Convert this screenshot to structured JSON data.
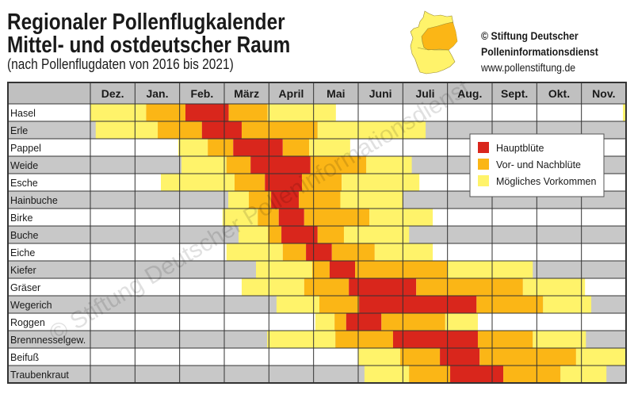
{
  "header": {
    "title_line1": "Regionaler Pollenflugkalender",
    "title_line2": "Mittel- und ostdeutscher Raum",
    "subtitle": "(nach Pollenflugdaten von 2016 bis 2021)",
    "publisher_line1": "© Stiftung Deutscher",
    "publisher_line2": "Polleninformationsdienst",
    "publisher_url": "www.pollenstiftung.de",
    "map_icon": "germany-map-icon",
    "watermark": "© Stiftung Deutscher Polleninformationsdienst"
  },
  "colors": {
    "Hauptblüte": "#d9261c",
    "Vor- und Nachblüte": "#fbb616",
    "Mögliches Vorkommen": "#fff36a",
    "row_alt": "#c8c8c8",
    "header_bg": "#c0c0c0",
    "map_region": "#fbb616",
    "map_other": "#fff36a"
  },
  "chart_data": {
    "type": "table",
    "title": "Regionaler Pollenflugkalender Mittel- und ostdeutscher Raum",
    "subtitle": "(nach Pollenflugdaten von 2016 bis 2021)",
    "months": [
      "Dez.",
      "Jan.",
      "Feb.",
      "März",
      "April",
      "Mai",
      "Juni",
      "Juli",
      "Aug.",
      "Sept.",
      "Okt.",
      "Nov."
    ],
    "legend": {
      "placement": "right",
      "entries": [
        {
          "level": 3,
          "label": "Hauptblüte"
        },
        {
          "level": 2,
          "label": "Vor- und Nachblüte"
        },
        {
          "level": 1,
          "label": "Mögliches Vorkommen"
        }
      ]
    },
    "position_unit": "months from start of Dez. (Dez.=0 … Nov. end=12)",
    "plants": [
      {
        "name": "Hasel",
        "periods": [
          [
            0,
            1.25,
            1
          ],
          [
            1.25,
            2.13,
            2
          ],
          [
            2.13,
            3.1,
            3
          ],
          [
            3.1,
            3.97,
            2
          ],
          [
            3.97,
            5.5,
            1
          ],
          [
            11.93,
            12,
            1
          ]
        ]
      },
      {
        "name": "Erle",
        "periods": [
          [
            0.12,
            1.51,
            1
          ],
          [
            1.51,
            2.5,
            2
          ],
          [
            2.5,
            3.39,
            3
          ],
          [
            3.39,
            5.09,
            2
          ],
          [
            5.09,
            7.51,
            1
          ]
        ]
      },
      {
        "name": "Pappel",
        "periods": [
          [
            1.97,
            2.63,
            1
          ],
          [
            2.63,
            3.2,
            2
          ],
          [
            3.2,
            4.31,
            3
          ],
          [
            4.31,
            4.9,
            2
          ],
          [
            4.9,
            5.82,
            1
          ]
        ]
      },
      {
        "name": "Weide",
        "periods": [
          [
            2.04,
            3.05,
            1
          ],
          [
            3.05,
            3.59,
            2
          ],
          [
            3.59,
            4.93,
            3
          ],
          [
            4.93,
            6.18,
            2
          ],
          [
            6.18,
            7.2,
            1
          ]
        ]
      },
      {
        "name": "Esche",
        "periods": [
          [
            1.58,
            3.23,
            1
          ],
          [
            3.23,
            3.91,
            2
          ],
          [
            3.91,
            4.74,
            3
          ],
          [
            4.74,
            5.63,
            2
          ],
          [
            5.63,
            7.37,
            1
          ]
        ]
      },
      {
        "name": "Hainbuche",
        "periods": [
          [
            3.09,
            3.55,
            1
          ],
          [
            3.55,
            4.05,
            2
          ],
          [
            4.05,
            4.67,
            3
          ],
          [
            4.67,
            5.6,
            2
          ],
          [
            5.6,
            7.0,
            1
          ]
        ]
      },
      {
        "name": "Birke",
        "periods": [
          [
            2.96,
            3.75,
            1
          ],
          [
            3.75,
            4.22,
            2
          ],
          [
            4.22,
            4.79,
            3
          ],
          [
            4.79,
            6.25,
            2
          ],
          [
            6.25,
            7.67,
            1
          ]
        ]
      },
      {
        "name": "Buche",
        "periods": [
          [
            3.32,
            3.98,
            1
          ],
          [
            3.98,
            4.28,
            2
          ],
          [
            4.28,
            5.09,
            3
          ],
          [
            5.09,
            5.68,
            2
          ],
          [
            5.68,
            7.14,
            1
          ]
        ]
      },
      {
        "name": "Eiche",
        "periods": [
          [
            3.05,
            4.31,
            1
          ],
          [
            4.31,
            4.83,
            2
          ],
          [
            4.83,
            5.41,
            3
          ],
          [
            5.41,
            6.37,
            2
          ],
          [
            6.37,
            7.67,
            1
          ]
        ]
      },
      {
        "name": "Kiefer",
        "periods": [
          [
            3.71,
            4.97,
            1
          ],
          [
            4.97,
            5.36,
            2
          ],
          [
            5.36,
            5.93,
            3
          ],
          [
            5.93,
            7.99,
            2
          ],
          [
            7.99,
            9.91,
            1
          ]
        ]
      },
      {
        "name": "Gräser",
        "periods": [
          [
            3.39,
            4.79,
            1
          ],
          [
            4.79,
            5.79,
            2
          ],
          [
            5.79,
            7.3,
            3
          ],
          [
            7.3,
            9.69,
            2
          ],
          [
            9.69,
            11.08,
            1
          ]
        ]
      },
      {
        "name": "Wegerich",
        "periods": [
          [
            4.17,
            5.13,
            1
          ],
          [
            5.13,
            6.02,
            2
          ],
          [
            6.02,
            8.65,
            3
          ],
          [
            8.65,
            10.14,
            2
          ],
          [
            10.14,
            11.22,
            1
          ]
        ]
      },
      {
        "name": "Roggen",
        "periods": [
          [
            5.04,
            5.47,
            1
          ],
          [
            5.47,
            5.73,
            2
          ],
          [
            5.73,
            6.52,
            3
          ],
          [
            6.52,
            7.95,
            2
          ],
          [
            7.95,
            8.68,
            1
          ]
        ]
      },
      {
        "name": "Brennnesselgew.",
        "periods": [
          [
            3.96,
            5.49,
            1
          ],
          [
            5.49,
            6.78,
            2
          ],
          [
            6.78,
            8.68,
            3
          ],
          [
            8.68,
            9.91,
            2
          ],
          [
            9.91,
            11.1,
            1
          ]
        ]
      },
      {
        "name": "Beifuß",
        "periods": [
          [
            6.0,
            6.94,
            1
          ],
          [
            6.94,
            7.83,
            2
          ],
          [
            7.83,
            8.72,
            3
          ],
          [
            8.72,
            10.88,
            2
          ],
          [
            10.88,
            12,
            1
          ]
        ]
      },
      {
        "name": "Traubenkraut",
        "periods": [
          [
            6.14,
            7.14,
            1
          ],
          [
            7.14,
            8.06,
            2
          ],
          [
            8.06,
            9.25,
            3
          ],
          [
            9.25,
            10.53,
            2
          ],
          [
            10.53,
            11.56,
            1
          ]
        ]
      }
    ]
  }
}
